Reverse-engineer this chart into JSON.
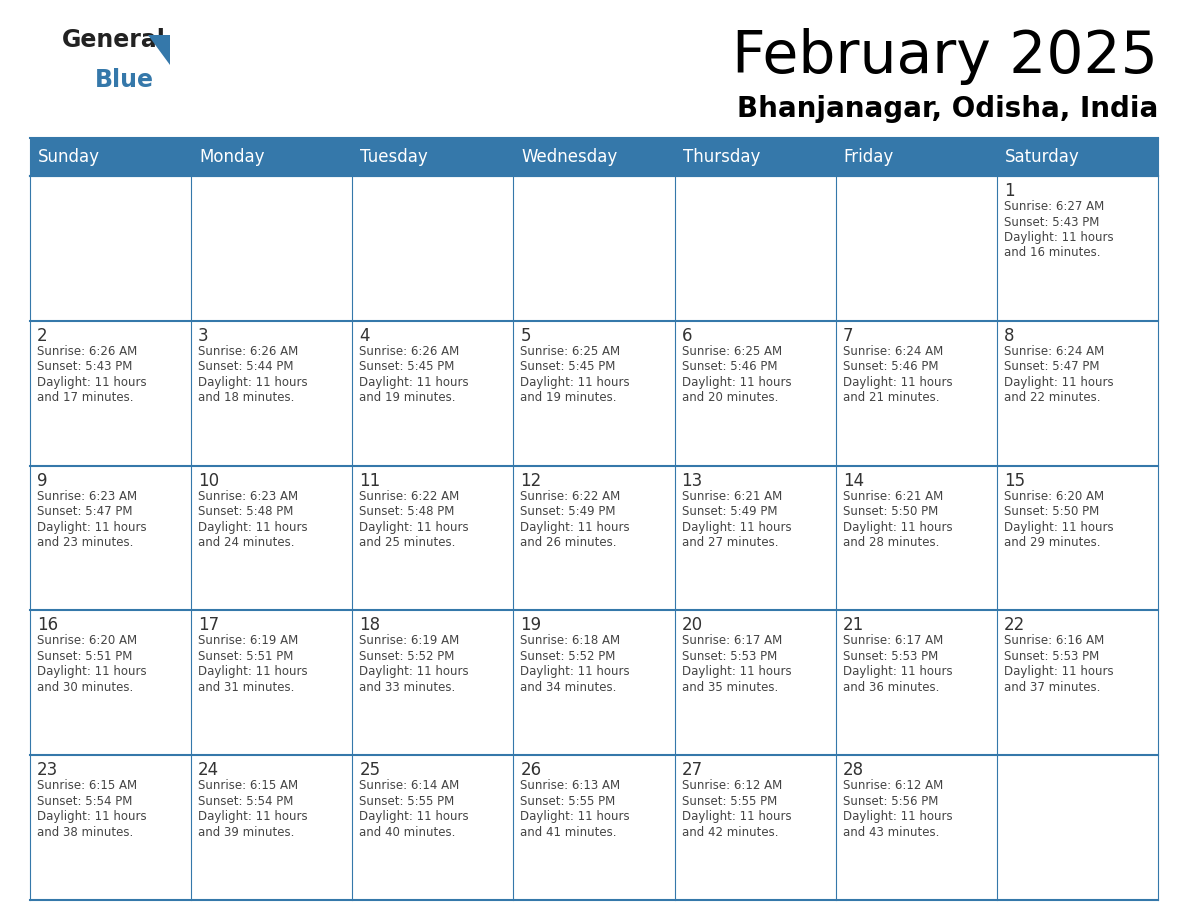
{
  "title": "February 2025",
  "subtitle": "Bhanjanagar, Odisha, India",
  "header_color": "#3578aa",
  "header_text_color": "#ffffff",
  "cell_bg_color": "#ffffff",
  "border_color": "#3578aa",
  "title_color": "#000000",
  "subtitle_color": "#000000",
  "day_number_color": "#333333",
  "info_text_color": "#444444",
  "days_of_week": [
    "Sunday",
    "Monday",
    "Tuesday",
    "Wednesday",
    "Thursday",
    "Friday",
    "Saturday"
  ],
  "weeks": [
    [
      null,
      null,
      null,
      null,
      null,
      null,
      1
    ],
    [
      2,
      3,
      4,
      5,
      6,
      7,
      8
    ],
    [
      9,
      10,
      11,
      12,
      13,
      14,
      15
    ],
    [
      16,
      17,
      18,
      19,
      20,
      21,
      22
    ],
    [
      23,
      24,
      25,
      26,
      27,
      28,
      null
    ]
  ],
  "day_data": {
    "1": {
      "sunrise": "6:27 AM",
      "sunset": "5:43 PM",
      "daylight_hrs": "11 hours",
      "daylight_min": "16 minutes"
    },
    "2": {
      "sunrise": "6:26 AM",
      "sunset": "5:43 PM",
      "daylight_hrs": "11 hours",
      "daylight_min": "17 minutes"
    },
    "3": {
      "sunrise": "6:26 AM",
      "sunset": "5:44 PM",
      "daylight_hrs": "11 hours",
      "daylight_min": "18 minutes"
    },
    "4": {
      "sunrise": "6:26 AM",
      "sunset": "5:45 PM",
      "daylight_hrs": "11 hours",
      "daylight_min": "19 minutes"
    },
    "5": {
      "sunrise": "6:25 AM",
      "sunset": "5:45 PM",
      "daylight_hrs": "11 hours",
      "daylight_min": "19 minutes"
    },
    "6": {
      "sunrise": "6:25 AM",
      "sunset": "5:46 PM",
      "daylight_hrs": "11 hours",
      "daylight_min": "20 minutes"
    },
    "7": {
      "sunrise": "6:24 AM",
      "sunset": "5:46 PM",
      "daylight_hrs": "11 hours",
      "daylight_min": "21 minutes"
    },
    "8": {
      "sunrise": "6:24 AM",
      "sunset": "5:47 PM",
      "daylight_hrs": "11 hours",
      "daylight_min": "22 minutes"
    },
    "9": {
      "sunrise": "6:23 AM",
      "sunset": "5:47 PM",
      "daylight_hrs": "11 hours",
      "daylight_min": "23 minutes"
    },
    "10": {
      "sunrise": "6:23 AM",
      "sunset": "5:48 PM",
      "daylight_hrs": "11 hours",
      "daylight_min": "24 minutes"
    },
    "11": {
      "sunrise": "6:22 AM",
      "sunset": "5:48 PM",
      "daylight_hrs": "11 hours",
      "daylight_min": "25 minutes"
    },
    "12": {
      "sunrise": "6:22 AM",
      "sunset": "5:49 PM",
      "daylight_hrs": "11 hours",
      "daylight_min": "26 minutes"
    },
    "13": {
      "sunrise": "6:21 AM",
      "sunset": "5:49 PM",
      "daylight_hrs": "11 hours",
      "daylight_min": "27 minutes"
    },
    "14": {
      "sunrise": "6:21 AM",
      "sunset": "5:50 PM",
      "daylight_hrs": "11 hours",
      "daylight_min": "28 minutes"
    },
    "15": {
      "sunrise": "6:20 AM",
      "sunset": "5:50 PM",
      "daylight_hrs": "11 hours",
      "daylight_min": "29 minutes"
    },
    "16": {
      "sunrise": "6:20 AM",
      "sunset": "5:51 PM",
      "daylight_hrs": "11 hours",
      "daylight_min": "30 minutes"
    },
    "17": {
      "sunrise": "6:19 AM",
      "sunset": "5:51 PM",
      "daylight_hrs": "11 hours",
      "daylight_min": "31 minutes"
    },
    "18": {
      "sunrise": "6:19 AM",
      "sunset": "5:52 PM",
      "daylight_hrs": "11 hours",
      "daylight_min": "33 minutes"
    },
    "19": {
      "sunrise": "6:18 AM",
      "sunset": "5:52 PM",
      "daylight_hrs": "11 hours",
      "daylight_min": "34 minutes"
    },
    "20": {
      "sunrise": "6:17 AM",
      "sunset": "5:53 PM",
      "daylight_hrs": "11 hours",
      "daylight_min": "35 minutes"
    },
    "21": {
      "sunrise": "6:17 AM",
      "sunset": "5:53 PM",
      "daylight_hrs": "11 hours",
      "daylight_min": "36 minutes"
    },
    "22": {
      "sunrise": "6:16 AM",
      "sunset": "5:53 PM",
      "daylight_hrs": "11 hours",
      "daylight_min": "37 minutes"
    },
    "23": {
      "sunrise": "6:15 AM",
      "sunset": "5:54 PM",
      "daylight_hrs": "11 hours",
      "daylight_min": "38 minutes"
    },
    "24": {
      "sunrise": "6:15 AM",
      "sunset": "5:54 PM",
      "daylight_hrs": "11 hours",
      "daylight_min": "39 minutes"
    },
    "25": {
      "sunrise": "6:14 AM",
      "sunset": "5:55 PM",
      "daylight_hrs": "11 hours",
      "daylight_min": "40 minutes"
    },
    "26": {
      "sunrise": "6:13 AM",
      "sunset": "5:55 PM",
      "daylight_hrs": "11 hours",
      "daylight_min": "41 minutes"
    },
    "27": {
      "sunrise": "6:12 AM",
      "sunset": "5:55 PM",
      "daylight_hrs": "11 hours",
      "daylight_min": "42 minutes"
    },
    "28": {
      "sunrise": "6:12 AM",
      "sunset": "5:56 PM",
      "daylight_hrs": "11 hours",
      "daylight_min": "43 minutes"
    }
  }
}
